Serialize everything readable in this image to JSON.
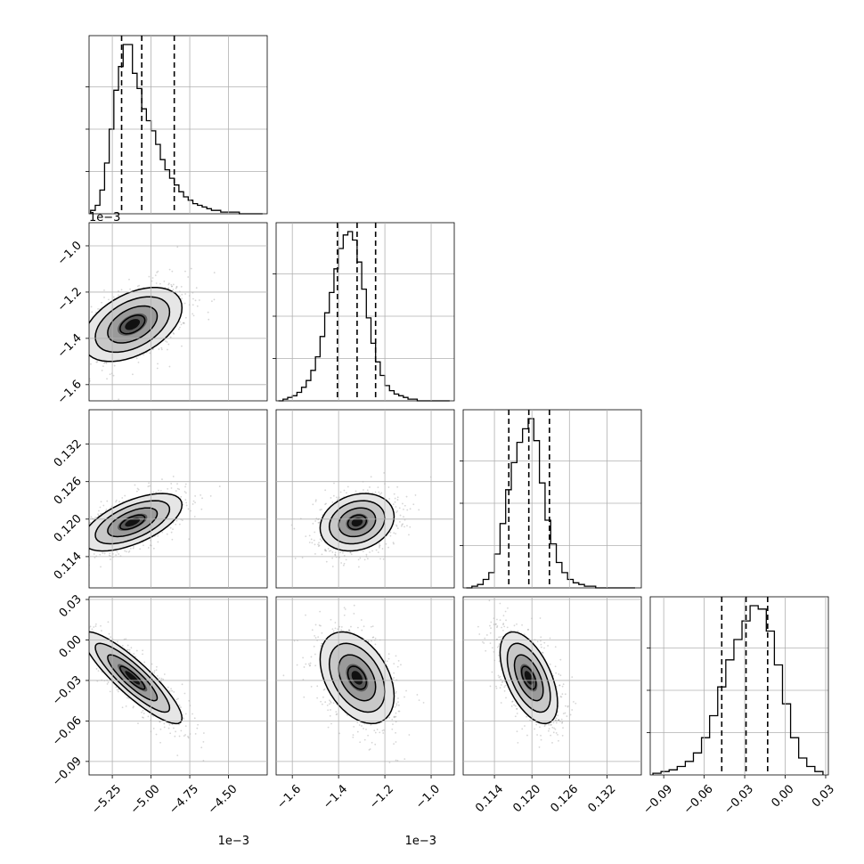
{
  "chart_data": {
    "type": "corner",
    "dimensions": 4,
    "variables": [
      {
        "index": 0,
        "ticks": [
          -5.25,
          -5.0,
          -4.75,
          -4.5
        ],
        "tick_labels": [
          "−5.25",
          "−5.00",
          "−4.75",
          "−4.50"
        ],
        "range": [
          -5.4,
          -4.25
        ],
        "offset_text": "1e−3"
      },
      {
        "index": 1,
        "ticks": [
          -1.6,
          -1.4,
          -1.2,
          -1.0
        ],
        "tick_labels": [
          "−1.6",
          "−1.4",
          "−1.2",
          "−1.0"
        ],
        "range": [
          -1.67,
          -0.9
        ],
        "offset_text": "1e−3"
      },
      {
        "index": 2,
        "ticks": [
          0.114,
          0.12,
          0.126,
          0.132
        ],
        "tick_labels": [
          "0.114",
          "0.120",
          "0.126",
          "0.132"
        ],
        "range": [
          0.109,
          0.1375
        ],
        "offset_text": ""
      },
      {
        "index": 3,
        "ticks": [
          -0.09,
          -0.06,
          -0.03,
          0.0,
          0.03
        ],
        "tick_labels": [
          "−0.09",
          "−0.06",
          "−0.03",
          "0.00",
          "0.03"
        ],
        "range": [
          -0.1,
          0.032
        ],
        "offset_text": ""
      }
    ],
    "top_left_offset_text": "1e−3",
    "marginals": [
      {
        "variable": 0,
        "quantiles": [
          -5.19,
          -5.06,
          -4.85
        ],
        "bin_edges": [
          -5.39,
          -5.36,
          -5.33,
          -5.3,
          -5.27,
          -5.24,
          -5.21,
          -5.18,
          -5.15,
          -5.12,
          -5.09,
          -5.06,
          -5.03,
          -5.0,
          -4.97,
          -4.94,
          -4.91,
          -4.88,
          -4.85,
          -4.82,
          -4.79,
          -4.76,
          -4.73,
          -4.7,
          -4.67,
          -4.64,
          -4.61,
          -4.58,
          -4.55,
          -4.52,
          -4.49,
          -4.46,
          -4.43,
          -4.4,
          -4.37,
          -4.34,
          -4.31,
          -4.28
        ],
        "counts": [
          0.02,
          0.05,
          0.14,
          0.3,
          0.5,
          0.73,
          0.87,
          1.0,
          1.0,
          0.83,
          0.74,
          0.62,
          0.55,
          0.49,
          0.41,
          0.32,
          0.26,
          0.21,
          0.17,
          0.13,
          0.1,
          0.08,
          0.06,
          0.05,
          0.04,
          0.03,
          0.02,
          0.02,
          0.01,
          0.01,
          0.01,
          0.01,
          0.0,
          0.0,
          0.0,
          0.0,
          0.0
        ]
      },
      {
        "variable": 1,
        "quantiles": [
          -1.405,
          -1.32,
          -1.24
        ],
        "bin_edges": [
          -1.66,
          -1.64,
          -1.62,
          -1.6,
          -1.58,
          -1.56,
          -1.54,
          -1.52,
          -1.5,
          -1.48,
          -1.46,
          -1.44,
          -1.42,
          -1.4,
          -1.38,
          -1.36,
          -1.34,
          -1.32,
          -1.3,
          -1.28,
          -1.26,
          -1.24,
          -1.22,
          -1.2,
          -1.18,
          -1.16,
          -1.14,
          -1.12,
          -1.1,
          -1.08,
          -1.06,
          -1.04,
          -1.02,
          -1.0,
          -0.98,
          -0.96,
          -0.94,
          -0.92
        ],
        "counts": [
          0.0,
          0.01,
          0.02,
          0.03,
          0.05,
          0.08,
          0.12,
          0.18,
          0.26,
          0.38,
          0.52,
          0.64,
          0.78,
          0.9,
          0.98,
          1.0,
          0.95,
          0.82,
          0.66,
          0.49,
          0.34,
          0.23,
          0.15,
          0.09,
          0.06,
          0.04,
          0.03,
          0.02,
          0.01,
          0.01,
          0.0,
          0.0,
          0.0,
          0.0,
          0.0,
          0.0,
          0.0
        ]
      },
      {
        "variable": 2,
        "quantiles": [
          0.1163,
          0.1195,
          0.1228
        ],
        "bin_edges": [
          0.1095,
          0.1104,
          0.1113,
          0.1122,
          0.1131,
          0.114,
          0.1149,
          0.1158,
          0.1167,
          0.1176,
          0.1185,
          0.1194,
          0.1203,
          0.1212,
          0.1221,
          0.123,
          0.1239,
          0.1248,
          0.1257,
          0.1266,
          0.1275,
          0.1284,
          0.1293,
          0.1302,
          0.1311,
          0.132,
          0.1329,
          0.1338,
          0.1347,
          0.1356,
          0.1365
        ],
        "counts": [
          0.0,
          0.01,
          0.02,
          0.05,
          0.09,
          0.2,
          0.38,
          0.58,
          0.74,
          0.86,
          0.94,
          1.0,
          0.87,
          0.62,
          0.4,
          0.26,
          0.15,
          0.09,
          0.05,
          0.03,
          0.02,
          0.01,
          0.01,
          0.0,
          0.0,
          0.0,
          0.0,
          0.0,
          0.0,
          0.0
        ]
      },
      {
        "variable": 3,
        "quantiles": [
          -0.047,
          -0.029,
          -0.013
        ],
        "bin_edges": [
          -0.098,
          -0.092,
          -0.086,
          -0.08,
          -0.074,
          -0.068,
          -0.062,
          -0.056,
          -0.05,
          -0.044,
          -0.038,
          -0.032,
          -0.026,
          -0.02,
          -0.014,
          -0.008,
          -0.002,
          0.004,
          0.01,
          0.016,
          0.022,
          0.028
        ],
        "counts": [
          0.01,
          0.02,
          0.03,
          0.05,
          0.08,
          0.13,
          0.22,
          0.35,
          0.52,
          0.68,
          0.8,
          0.91,
          1.0,
          0.98,
          0.85,
          0.65,
          0.42,
          0.22,
          0.1,
          0.05,
          0.02
        ]
      }
    ],
    "pairs": [
      {
        "x": 0,
        "y": 1,
        "center": [
          -5.12,
          -1.34
        ],
        "sd": [
          0.16,
          0.08
        ],
        "corr": 0.45
      },
      {
        "x": 0,
        "y": 2,
        "center": [
          -5.12,
          0.1195
        ],
        "sd": [
          0.16,
          0.0023
        ],
        "corr": 0.6
      },
      {
        "x": 1,
        "y": 2,
        "center": [
          -1.32,
          0.1195
        ],
        "sd": [
          0.08,
          0.0023
        ],
        "corr": 0.2
      },
      {
        "x": 0,
        "y": 3,
        "center": [
          -5.12,
          -0.028
        ],
        "sd": [
          0.16,
          0.017
        ],
        "corr": -0.88
      },
      {
        "x": 1,
        "y": 3,
        "center": [
          -1.32,
          -0.028
        ],
        "sd": [
          0.08,
          0.017
        ],
        "corr": -0.4
      },
      {
        "x": 2,
        "y": 3,
        "center": [
          0.1195,
          -0.028
        ],
        "sd": [
          0.0023,
          0.017
        ],
        "corr": -0.55
      }
    ],
    "contour_levels_sigma": [
      0.5,
      1.0,
      1.5,
      2.0
    ],
    "grid": true
  }
}
